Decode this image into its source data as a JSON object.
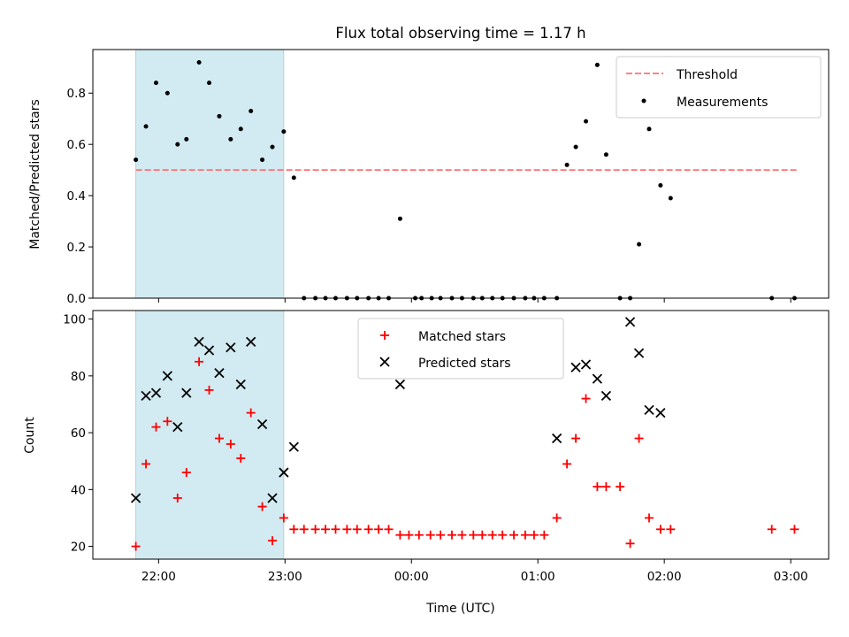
{
  "chart_data": [
    {
      "type": "scatter",
      "title": "Flux total observing time = 1.17 h",
      "xlabel": "",
      "ylabel": "Matched/Predicted stars",
      "ylim": [
        0,
        0.97
      ],
      "yticks": [
        "0.0",
        "0.2",
        "0.4",
        "0.6",
        "0.8"
      ],
      "xlim_hours": [
        21.48,
        27.3
      ],
      "shaded_span_hours": [
        21.82,
        22.99
      ],
      "legend": {
        "placement": "top-right",
        "entries": [
          "Threshold",
          "Measurements"
        ]
      },
      "threshold": {
        "name": "Threshold",
        "value": 0.5,
        "x_hours": [
          21.82,
          27.05
        ],
        "color": "#ff7070"
      },
      "series": [
        {
          "name": "Measurements",
          "color": "#000000",
          "x_hours": [
            21.82,
            21.9,
            21.98,
            22.07,
            22.15,
            22.22,
            22.32,
            22.4,
            22.48,
            22.57,
            22.65,
            22.73,
            22.82,
            22.9,
            22.99,
            23.07,
            23.15,
            23.24,
            23.32,
            23.4,
            23.49,
            23.57,
            23.66,
            23.74,
            23.82,
            23.91,
            24.03,
            24.08,
            24.16,
            24.23,
            24.32,
            24.4,
            24.49,
            24.56,
            24.64,
            24.72,
            24.81,
            24.9,
            24.97,
            25.05,
            25.15,
            25.23,
            25.3,
            25.38,
            25.47,
            25.54,
            25.65,
            25.73,
            25.8,
            25.88,
            25.97,
            26.05,
            26.85,
            27.03
          ],
          "y": [
            0.54,
            0.67,
            0.84,
            0.8,
            0.6,
            0.62,
            0.92,
            0.84,
            0.71,
            0.62,
            0.66,
            0.73,
            0.54,
            0.59,
            0.65,
            0.47,
            0.0,
            0.0,
            0.0,
            0.0,
            0.0,
            0.0,
            0.0,
            0.0,
            0.0,
            0.31,
            0.0,
            0.0,
            0.0,
            0.0,
            0.0,
            0.0,
            0.0,
            0.0,
            0.0,
            0.0,
            0.0,
            0.0,
            0.0,
            0.0,
            0.0,
            0.52,
            0.59,
            0.69,
            0.91,
            0.56,
            0.0,
            0.0,
            0.21,
            0.66,
            0.44,
            0.39,
            0.0,
            0.0
          ]
        }
      ]
    },
    {
      "type": "scatter",
      "xlabel": "Time (UTC)",
      "ylabel": "Count",
      "ylim": [
        15.5,
        103
      ],
      "yticks": [
        "20",
        "40",
        "60",
        "80",
        "100"
      ],
      "xticks": [
        "22:00",
        "23:00",
        "00:00",
        "01:00",
        "02:00",
        "03:00"
      ],
      "xlim_hours": [
        21.48,
        27.3
      ],
      "shaded_span_hours": [
        21.82,
        22.99
      ],
      "legend": {
        "placement": "top-center",
        "entries": [
          "Matched stars",
          "Predicted stars"
        ]
      },
      "series": [
        {
          "name": "Matched stars",
          "marker": "+",
          "color": "#ff0000",
          "x_hours": [
            21.82,
            21.9,
            21.98,
            22.07,
            22.15,
            22.22,
            22.32,
            22.4,
            22.48,
            22.57,
            22.65,
            22.73,
            22.82,
            22.9,
            22.99,
            23.07,
            23.15,
            23.24,
            23.32,
            23.4,
            23.49,
            23.57,
            23.66,
            23.74,
            23.82,
            23.91,
            23.98,
            24.06,
            24.15,
            24.23,
            24.32,
            24.4,
            24.49,
            24.56,
            24.64,
            24.72,
            24.81,
            24.9,
            24.97,
            25.05,
            25.15,
            25.23,
            25.3,
            25.38,
            25.47,
            25.54,
            25.65,
            25.73,
            25.8,
            25.88,
            25.97,
            26.05,
            26.85,
            27.03
          ],
          "y": [
            20,
            49,
            62,
            64,
            37,
            46,
            85,
            75,
            58,
            56,
            51,
            67,
            34,
            22,
            30,
            26,
            26,
            26,
            26,
            26,
            26,
            26,
            26,
            26,
            26,
            24,
            24,
            24,
            24,
            24,
            24,
            24,
            24,
            24,
            24,
            24,
            24,
            24,
            24,
            24,
            30,
            49,
            58,
            72,
            41,
            41,
            41,
            21,
            58,
            30,
            26,
            26,
            26,
            26
          ]
        },
        {
          "name": "Predicted stars",
          "marker": "x",
          "color": "#000000",
          "x_hours": [
            21.82,
            21.9,
            21.98,
            22.07,
            22.15,
            22.22,
            22.32,
            22.4,
            22.48,
            22.57,
            22.65,
            22.73,
            22.82,
            22.9,
            22.99,
            23.07,
            23.91,
            25.15,
            25.3,
            25.38,
            25.47,
            25.54,
            25.73,
            25.8,
            25.88,
            25.97
          ],
          "y": [
            37,
            73,
            74,
            80,
            62,
            74,
            92,
            89,
            81,
            90,
            77,
            92,
            63,
            37,
            46,
            55,
            77,
            58,
            83,
            84,
            79,
            73,
            99,
            88,
            68,
            67
          ]
        }
      ]
    }
  ]
}
